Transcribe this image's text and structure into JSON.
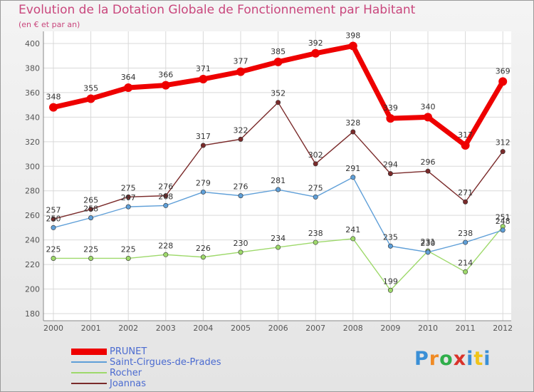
{
  "title": "Evolution de la Dotation Globale de Fonctionnement par Habitant",
  "subtitle": "(en € et par an)",
  "logo": {
    "text": "Proxiti",
    "colors": [
      "#3a8fd6",
      "#f08a24",
      "#2fae4a",
      "#d9322a",
      "#3a8fd6",
      "#f0c419",
      "#3a8fd6"
    ]
  },
  "chart_data": {
    "type": "line",
    "categories": [
      "2000",
      "2001",
      "2002",
      "2003",
      "2004",
      "2005",
      "2006",
      "2007",
      "2008",
      "2009",
      "2010",
      "2011",
      "2012"
    ],
    "ylim": [
      180,
      400
    ],
    "yticks": [
      180,
      200,
      220,
      240,
      260,
      280,
      300,
      320,
      340,
      360,
      380,
      400
    ],
    "grid": true,
    "legend_position": "bottom-left",
    "series": [
      {
        "name": "PRUNET",
        "color": "#ee0000",
        "values": [
          348,
          355,
          364,
          366,
          371,
          377,
          385,
          392,
          398,
          339,
          340,
          317,
          369
        ]
      },
      {
        "name": "Saint-Cirgues-de-Prades",
        "color": "#5f9fd8",
        "values": [
          250,
          258,
          267,
          268,
          279,
          276,
          281,
          275,
          291,
          235,
          230,
          238,
          248
        ]
      },
      {
        "name": "Rocher",
        "color": "#9ed96b",
        "values": [
          225,
          225,
          225,
          228,
          226,
          230,
          234,
          238,
          241,
          199,
          231,
          214,
          251
        ]
      },
      {
        "name": "Joannas",
        "color": "#7a2a2a",
        "values": [
          257,
          265,
          275,
          276,
          317,
          322,
          352,
          302,
          328,
          294,
          296,
          271,
          312
        ]
      }
    ]
  }
}
